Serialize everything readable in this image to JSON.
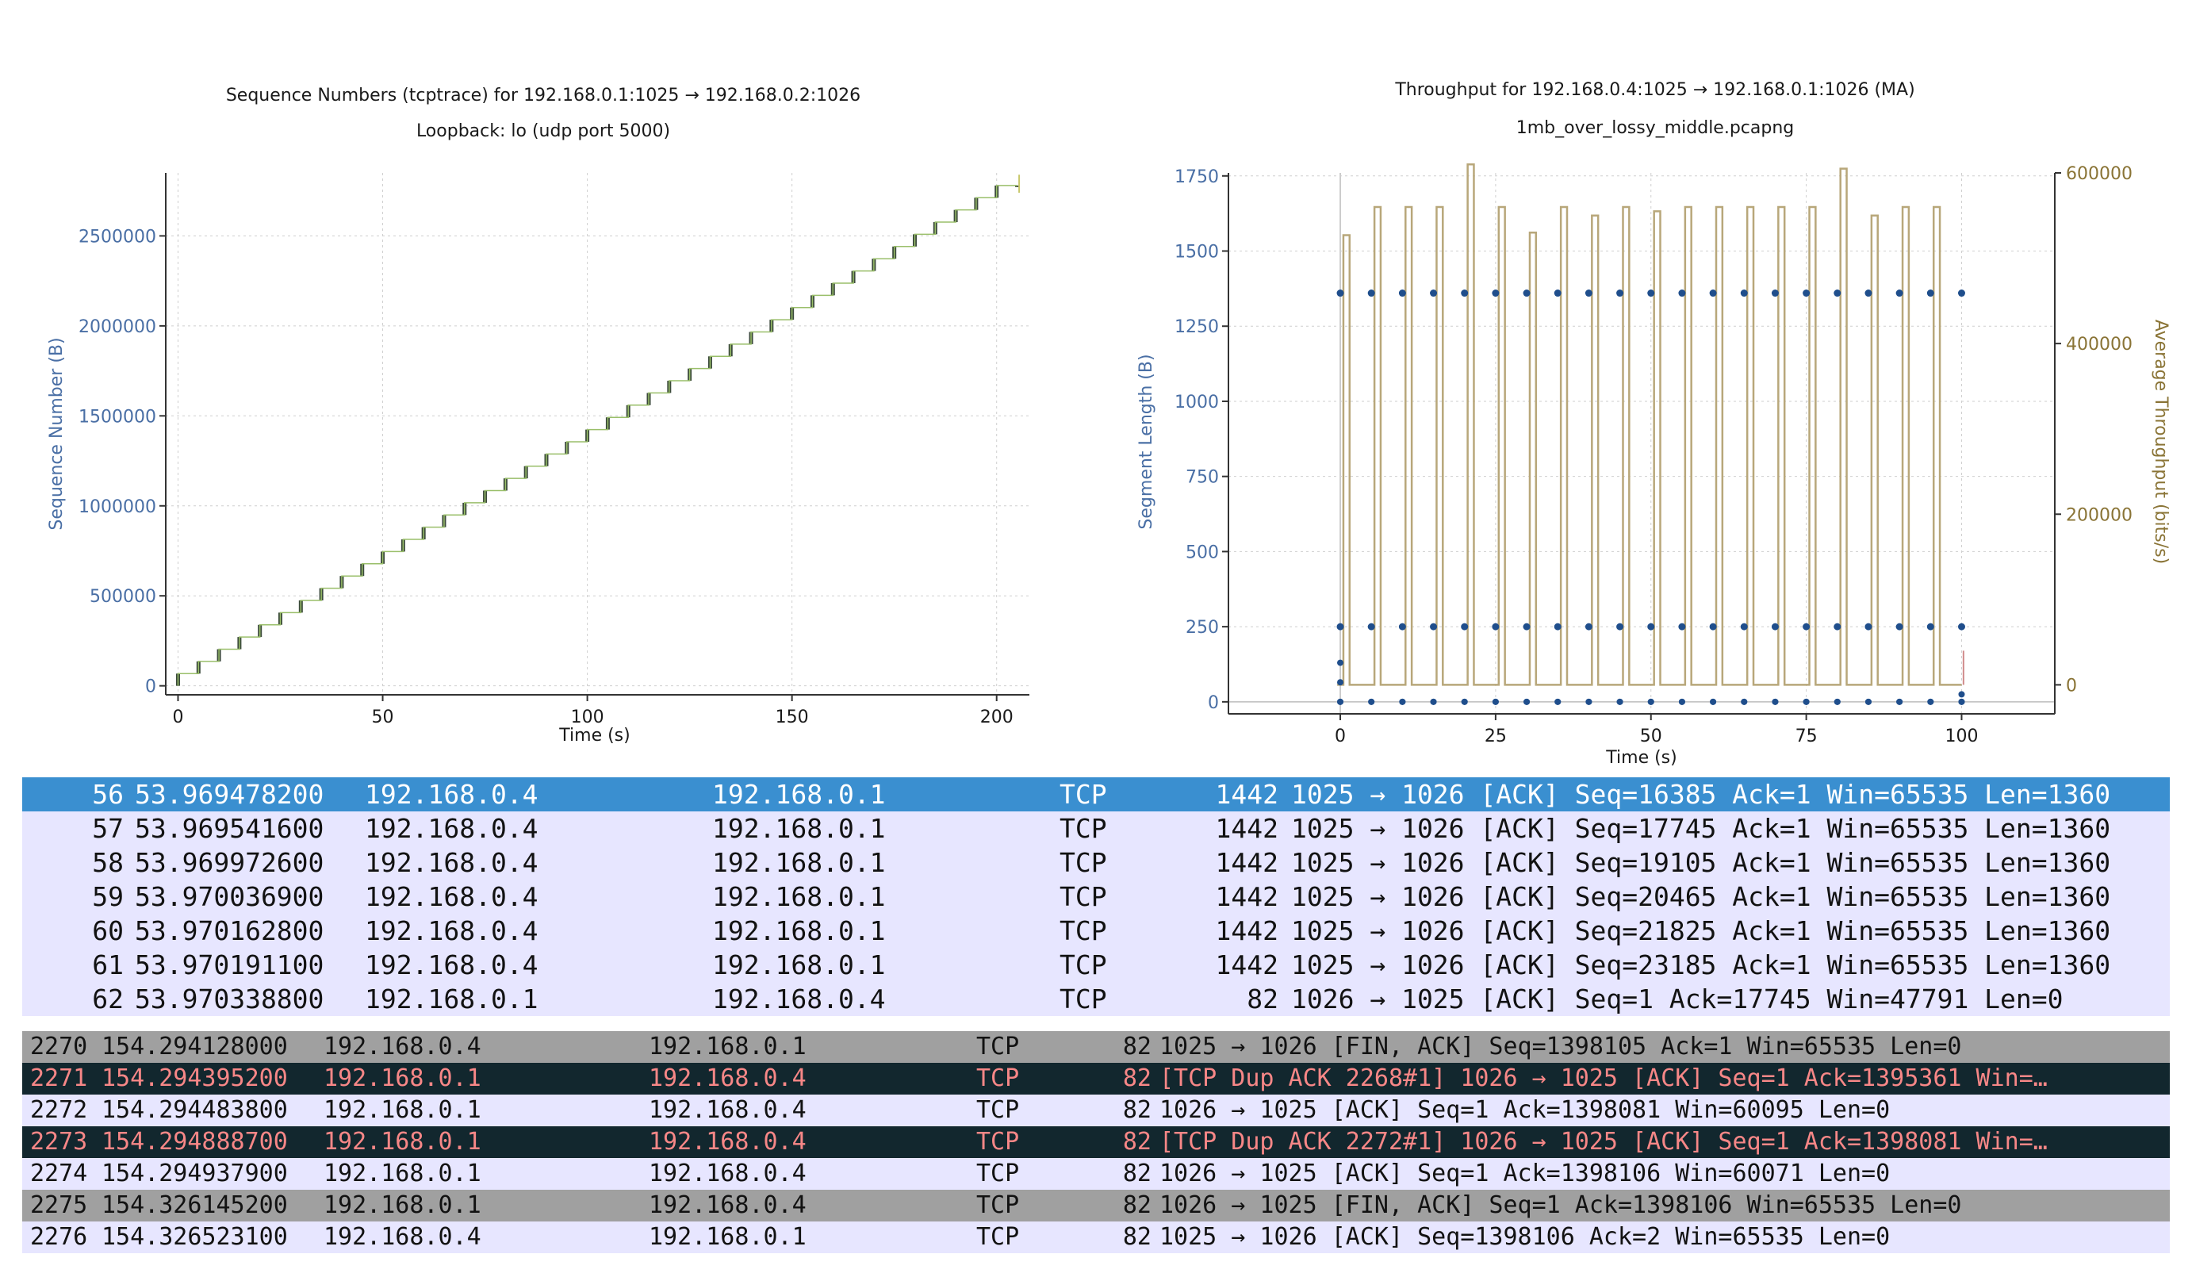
{
  "seq_chart": {
    "title": "Sequence Numbers (tcptrace) for 192.168.0.1:1025 → 192.168.0.2:1026",
    "subtitle": "Loopback: lo (udp port 5000)",
    "xlabel": "Time (s)",
    "ylabel": "Sequence Number (B)",
    "x_ticks": [
      "0",
      "50",
      "100",
      "150",
      "200"
    ],
    "y_ticks": [
      "0",
      "500000",
      "1000000",
      "1500000",
      "2000000",
      "2500000"
    ],
    "colors": {
      "axis_label": "#4a6fa5",
      "trace": "#2d5a2d",
      "segment": "#3b4a3b"
    }
  },
  "tput_chart": {
    "title": "Throughput for 192.168.0.4:1025 → 192.168.0.1:1026 (MA)",
    "subtitle": "1mb_over_lossy_middle.pcapng",
    "xlabel": "Time (s)",
    "ylabel": "Segment Length (B)",
    "y2label": "Average Throughput (bits/s)",
    "x_ticks": [
      "0",
      "25",
      "50",
      "75",
      "100"
    ],
    "y_ticks": [
      "0",
      "250",
      "500",
      "750",
      "1000",
      "1250",
      "1500",
      "1750"
    ],
    "y2_ticks": [
      "0",
      "200000",
      "400000",
      "600000"
    ],
    "colors": {
      "points": "#1f4e8c",
      "throughput": "#b8a77a",
      "y2_label": "#8a7436"
    }
  },
  "chart_data": [
    {
      "type": "scatter",
      "title": "Sequence Numbers (tcptrace) for 192.168.0.1:1025 → 192.168.0.2:1026",
      "subtitle": "Loopback: lo (udp port 5000)",
      "xlabel": "Time (s)",
      "ylabel": "Sequence Number (B)",
      "xlim": [
        -3,
        208
      ],
      "ylim": [
        -50000,
        2850000
      ],
      "series": [
        {
          "x": [
            0,
            205
          ],
          "y": [
            0,
            2780000
          ]
        }
      ],
      "step_interval_s": 5,
      "grid": true
    },
    {
      "type": "line",
      "title": "Throughput for 192.168.0.4:1025 → 192.168.0.1:1026 (MA)",
      "subtitle": "1mb_over_lossy_middle.pcapng",
      "xlabel": "Time (s)",
      "ylabel": "Segment Length (B)",
      "y2label": "Average Throughput (bits/s)",
      "xlim": [
        -18,
        115
      ],
      "ylim": [
        -40,
        1760
      ],
      "y2lim": [
        -34000,
        600000
      ],
      "series": [
        {
          "x": [
            0,
            5,
            10,
            15,
            20,
            25,
            30,
            35,
            40,
            45,
            50,
            55,
            60,
            65,
            70,
            75,
            80,
            85,
            90,
            95,
            100
          ],
          "y": [
            1360,
            1360,
            1360,
            1360,
            1360,
            1360,
            1360,
            1360,
            1360,
            1360,
            1360,
            1360,
            1360,
            1360,
            1360,
            1360,
            1360,
            1360,
            1360,
            1360,
            1360
          ]
        },
        {
          "x": [
            0,
            5,
            10,
            15,
            20,
            25,
            30,
            35,
            40,
            45,
            50,
            55,
            60,
            65,
            70,
            75,
            80,
            85,
            90,
            95,
            100
          ],
          "y": [
            250,
            250,
            250,
            250,
            250,
            250,
            250,
            250,
            250,
            250,
            250,
            250,
            250,
            250,
            250,
            250,
            250,
            250,
            250,
            250,
            250
          ]
        },
        {
          "x": [
            0.5,
            5.5,
            10.5,
            15.5,
            20.5,
            25.5,
            30.5,
            35.5,
            40.5,
            45.5,
            50.5,
            55.5,
            60.5,
            65.5,
            70.5,
            75.5,
            80.5,
            85.5,
            90.5,
            95.5
          ],
          "y2": [
            527000,
            560000,
            560000,
            560000,
            610000,
            560000,
            530000,
            560000,
            550000,
            560000,
            555000,
            560000,
            560000,
            560000,
            560000,
            560000,
            605000,
            550000,
            560000,
            560000
          ]
        }
      ],
      "grid": true
    }
  ],
  "packet_list_top": {
    "rows": [
      {
        "no": "56",
        "time": "53.969478200",
        "src": "192.168.0.4",
        "dst": "192.168.0.1",
        "proto": "TCP",
        "len": "1442",
        "info": "1025 → 1026 [ACK] Seq=16385 Ack=1 Win=65535 Len=1360",
        "style": "selected"
      },
      {
        "no": "57",
        "time": "53.969541600",
        "src": "192.168.0.4",
        "dst": "192.168.0.1",
        "proto": "TCP",
        "len": "1442",
        "info": "1025 → 1026 [ACK] Seq=17745 Ack=1 Win=65535 Len=1360",
        "style": "normal"
      },
      {
        "no": "58",
        "time": "53.969972600",
        "src": "192.168.0.4",
        "dst": "192.168.0.1",
        "proto": "TCP",
        "len": "1442",
        "info": "1025 → 1026 [ACK] Seq=19105 Ack=1 Win=65535 Len=1360",
        "style": "normal"
      },
      {
        "no": "59",
        "time": "53.970036900",
        "src": "192.168.0.4",
        "dst": "192.168.0.1",
        "proto": "TCP",
        "len": "1442",
        "info": "1025 → 1026 [ACK] Seq=20465 Ack=1 Win=65535 Len=1360",
        "style": "normal"
      },
      {
        "no": "60",
        "time": "53.970162800",
        "src": "192.168.0.4",
        "dst": "192.168.0.1",
        "proto": "TCP",
        "len": "1442",
        "info": "1025 → 1026 [ACK] Seq=21825 Ack=1 Win=65535 Len=1360",
        "style": "normal"
      },
      {
        "no": "61",
        "time": "53.970191100",
        "src": "192.168.0.4",
        "dst": "192.168.0.1",
        "proto": "TCP",
        "len": "1442",
        "info": "1025 → 1026 [ACK] Seq=23185 Ack=1 Win=65535 Len=1360",
        "style": "normal"
      },
      {
        "no": "62",
        "time": "53.970338800",
        "src": "192.168.0.1",
        "dst": "192.168.0.4",
        "proto": "TCP",
        "len": "82",
        "info": "1026 → 1025 [ACK] Seq=1 Ack=17745 Win=47791 Len=0",
        "style": "normal"
      }
    ]
  },
  "packet_list_bottom": {
    "rows": [
      {
        "no": "2270",
        "time": "154.294128000",
        "src": "192.168.0.4",
        "dst": "192.168.0.1",
        "proto": "TCP",
        "len": "82",
        "info": "1025 → 1026 [FIN, ACK] Seq=1398105 Ack=1 Win=65535 Len=0",
        "style": "fin"
      },
      {
        "no": "2271",
        "time": "154.294395200",
        "src": "192.168.0.1",
        "dst": "192.168.0.4",
        "proto": "TCP",
        "len": "82",
        "info": "[TCP Dup ACK 2268#1] 1026 → 1025 [ACK] Seq=1 Ack=1395361 Win=…",
        "style": "bad"
      },
      {
        "no": "2272",
        "time": "154.294483800",
        "src": "192.168.0.1",
        "dst": "192.168.0.4",
        "proto": "TCP",
        "len": "82",
        "info": "1026 → 1025 [ACK] Seq=1 Ack=1398081 Win=60095 Len=0",
        "style": "normal"
      },
      {
        "no": "2273",
        "time": "154.294888700",
        "src": "192.168.0.1",
        "dst": "192.168.0.4",
        "proto": "TCP",
        "len": "82",
        "info": "[TCP Dup ACK 2272#1] 1026 → 1025 [ACK] Seq=1 Ack=1398081 Win=…",
        "style": "bad"
      },
      {
        "no": "2274",
        "time": "154.294937900",
        "src": "192.168.0.1",
        "dst": "192.168.0.4",
        "proto": "TCP",
        "len": "82",
        "info": "1026 → 1025 [ACK] Seq=1 Ack=1398106 Win=60071 Len=0",
        "style": "normal"
      },
      {
        "no": "2275",
        "time": "154.326145200",
        "src": "192.168.0.1",
        "dst": "192.168.0.4",
        "proto": "TCP",
        "len": "82",
        "info": "1026 → 1025 [FIN, ACK] Seq=1 Ack=1398106 Win=65535 Len=0",
        "style": "fin"
      },
      {
        "no": "2276",
        "time": "154.326523100",
        "src": "192.168.0.4",
        "dst": "192.168.0.1",
        "proto": "TCP",
        "len": "82",
        "info": "1025 → 1026 [ACK] Seq=1398106 Ack=2 Win=65535 Len=0",
        "style": "normal"
      }
    ]
  },
  "row_styles": {
    "selected": {
      "bg": "#3a8fd0",
      "fg": "#ffffff"
    },
    "normal": {
      "bg": "#e7e6ff",
      "fg": "#121212"
    },
    "fin": {
      "bg": "#a0a0a0",
      "fg": "#121212"
    },
    "bad": {
      "bg": "#12272e",
      "fg": "#f78787"
    }
  }
}
